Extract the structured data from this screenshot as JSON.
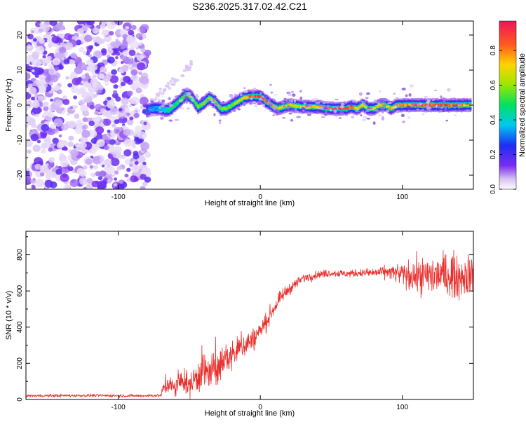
{
  "title": "S236.2025.317.02.42.C21",
  "chart_data": [
    {
      "type": "heatmap",
      "xlabel": "Height of straight line (km)",
      "ylabel": "Frequency (Hz)",
      "xlim": [
        -165,
        150
      ],
      "ylim": [
        -24,
        24
      ],
      "x_ticks": [
        -100,
        0,
        100
      ],
      "y_ticks": [
        -20,
        -10,
        0,
        10,
        20
      ],
      "colorbar": {
        "label": "Normalized spectral amplitude",
        "range": [
          0,
          0.97
        ],
        "ticks": [
          "0.0",
          "0.2",
          "0.4",
          "0.6",
          "0.8"
        ]
      },
      "ridge": {
        "x": [
          -80,
          -75,
          -70,
          -65,
          -60,
          -56,
          -52,
          -48,
          -44,
          -40,
          -36,
          -32,
          -28,
          -24,
          -20,
          -16,
          -12,
          -8,
          -4,
          0,
          4,
          8,
          12,
          16,
          20,
          30,
          40,
          50,
          60,
          64,
          68,
          72,
          76,
          80,
          84,
          88,
          92,
          96,
          100,
          110,
          120,
          130,
          140,
          148
        ],
        "freq": [
          -1.5,
          -1,
          -1,
          -1.5,
          0,
          1.5,
          3,
          2,
          -0.5,
          0.5,
          2,
          1,
          -1,
          -1,
          0,
          1,
          2,
          2.5,
          2.5,
          2.5,
          1,
          0,
          -1,
          -0.5,
          0,
          -0.5,
          -0.5,
          -1,
          -1,
          -0.5,
          -1,
          0,
          -1,
          -1,
          0,
          0,
          -1,
          0,
          0,
          0,
          0,
          0,
          0,
          0
        ],
        "amp": [
          0.3,
          0.35,
          0.35,
          0.45,
          0.5,
          0.55,
          0.6,
          0.55,
          0.55,
          0.6,
          0.62,
          0.6,
          0.58,
          0.62,
          0.6,
          0.65,
          0.7,
          0.85,
          0.9,
          0.9,
          0.85,
          0.75,
          0.7,
          0.72,
          0.7,
          0.72,
          0.75,
          0.88,
          0.92,
          0.85,
          0.75,
          0.7,
          0.7,
          0.75,
          0.72,
          0.7,
          0.75,
          0.8,
          0.82,
          0.85,
          0.9,
          0.88,
          0.82,
          0.7
        ]
      },
      "noise_region_xlim": [
        -165,
        -80
      ]
    },
    {
      "type": "line",
      "xlabel": "Height of straight line (km)",
      "ylabel": "SNR (10 * v/v)",
      "xlim": [
        -165,
        150
      ],
      "ylim": [
        0,
        930
      ],
      "x_ticks": [
        -100,
        0,
        100
      ],
      "y_ticks": [
        0,
        200,
        400,
        600,
        800
      ],
      "line_color": "#e8312e",
      "envelope": {
        "x": [
          -165,
          -120,
          -85,
          -70,
          -67,
          -60,
          -55,
          -50,
          -45,
          -40,
          -35,
          -30,
          -25,
          -20,
          -15,
          -10,
          -5,
          0,
          5,
          10,
          15,
          20,
          25,
          30,
          40,
          50,
          60,
          70,
          80,
          90,
          100,
          110,
          120,
          130,
          140,
          150
        ],
        "mean": [
          20,
          22,
          20,
          22,
          90,
          60,
          110,
          70,
          130,
          160,
          140,
          170,
          220,
          240,
          280,
          310,
          330,
          380,
          440,
          510,
          570,
          610,
          640,
          670,
          690,
          700,
          695,
          700,
          700,
          705,
          690,
          680,
          685,
          690,
          680,
          690
        ],
        "noise": [
          8,
          8,
          8,
          10,
          60,
          50,
          60,
          60,
          90,
          120,
          100,
          90,
          80,
          80,
          70,
          70,
          60,
          50,
          45,
          40,
          35,
          30,
          25,
          25,
          20,
          20,
          20,
          20,
          25,
          35,
          60,
          90,
          110,
          120,
          110,
          100
        ]
      }
    }
  ]
}
